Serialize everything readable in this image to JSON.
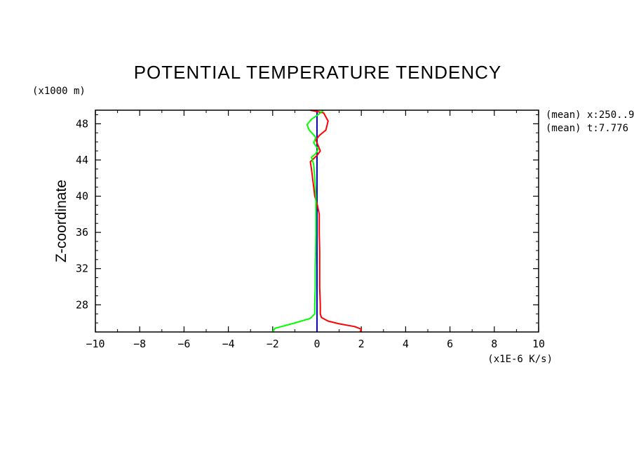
{
  "chart_data": {
    "type": "line",
    "title": "POTENTIAL TEMPERATURE TENDENCY",
    "xlabel": "(x1E-6 K/s)",
    "ylabel": "Z-coordinate",
    "yunit": "(x1000 m)",
    "xlim": [
      -10,
      10
    ],
    "ylim": [
      25,
      49.5
    ],
    "xticks": [
      -10,
      -8,
      -6,
      -4,
      -2,
      0,
      2,
      4,
      6,
      8,
      10
    ],
    "yticks": [
      28,
      32,
      36,
      40,
      44,
      48
    ],
    "annotations": [
      "(mean) x:250..9",
      "(mean) t:7.776"
    ],
    "grid": false,
    "series": [
      {
        "color": "#0000ff",
        "points": [
          [
            0,
            25
          ],
          [
            0,
            49.5
          ]
        ]
      },
      {
        "color": "#ff0000",
        "points": [
          [
            1.95,
            25
          ],
          [
            2.0,
            25.3
          ],
          [
            1.7,
            25.6
          ],
          [
            1.0,
            25.9
          ],
          [
            0.5,
            26.2
          ],
          [
            0.2,
            26.6
          ],
          [
            0.15,
            27.0
          ],
          [
            0.15,
            28
          ],
          [
            0.12,
            30
          ],
          [
            0.12,
            32
          ],
          [
            0.12,
            34
          ],
          [
            0.1,
            36
          ],
          [
            0.1,
            38
          ],
          [
            0.02,
            39
          ],
          [
            -0.1,
            40
          ],
          [
            -0.15,
            41
          ],
          [
            -0.2,
            42
          ],
          [
            -0.25,
            43
          ],
          [
            -0.3,
            43.8
          ],
          [
            0,
            44.5
          ],
          [
            0.15,
            45
          ],
          [
            0.05,
            45.6
          ],
          [
            -0.05,
            46.2
          ],
          [
            0.1,
            46.7
          ],
          [
            0.4,
            47.3
          ],
          [
            0.5,
            48.3
          ],
          [
            0.3,
            49.2
          ],
          [
            -0.3,
            49.5
          ]
        ]
      },
      {
        "color": "#00ff00",
        "points": [
          [
            -2.0,
            25
          ],
          [
            -1.9,
            25.4
          ],
          [
            -1.0,
            26.0
          ],
          [
            -0.3,
            26.5
          ],
          [
            -0.1,
            27.0
          ],
          [
            -0.1,
            28
          ],
          [
            -0.08,
            30
          ],
          [
            -0.08,
            32
          ],
          [
            -0.06,
            34
          ],
          [
            -0.05,
            36
          ],
          [
            -0.05,
            38
          ],
          [
            -0.05,
            40
          ],
          [
            -0.1,
            42
          ],
          [
            -0.15,
            43.5
          ],
          [
            -0.25,
            44.3
          ],
          [
            -0.05,
            44.7
          ],
          [
            0.05,
            45.2
          ],
          [
            -0.15,
            45.9
          ],
          [
            -0.05,
            46.5
          ],
          [
            -0.35,
            47.3
          ],
          [
            -0.45,
            47.9
          ],
          [
            -0.25,
            48.5
          ],
          [
            0.05,
            49.0
          ],
          [
            0.3,
            49.5
          ]
        ]
      }
    ]
  }
}
